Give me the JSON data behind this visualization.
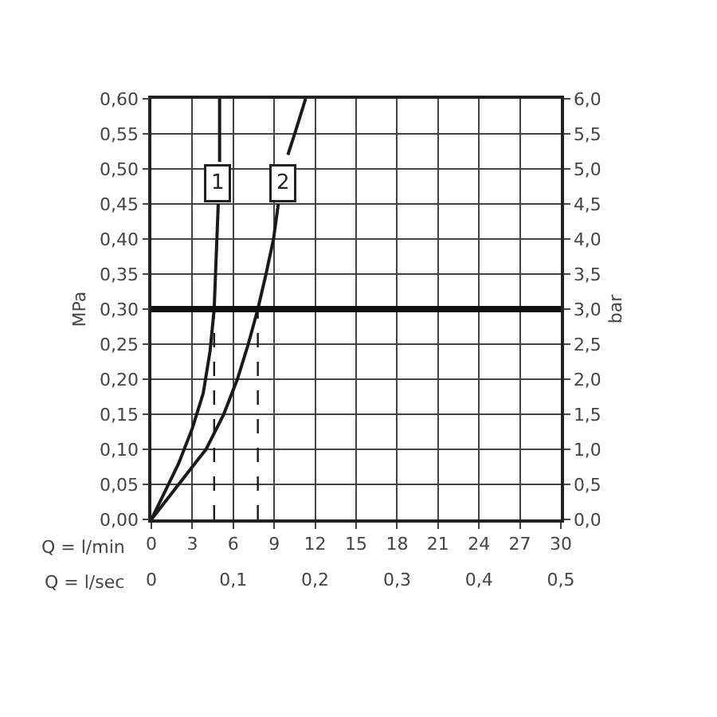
{
  "chart_data": {
    "type": "line",
    "xlabel": "Q = l/min",
    "x2label": "Q = l/sec",
    "ylabel": "MPa",
    "y2label": "bar",
    "xlim": [
      0,
      30
    ],
    "xticks": [
      0,
      3,
      6,
      9,
      12,
      15,
      18,
      21,
      24,
      27,
      30
    ],
    "x2lim": [
      0,
      0.5
    ],
    "x2ticks": [
      0,
      {
        "value": 0.1,
        "label": "0,1"
      },
      {
        "value": 0.2,
        "label": "0,2"
      },
      {
        "value": 0.3,
        "label": "0,3"
      },
      {
        "value": 0.4,
        "label": "0,4"
      },
      {
        "value": 0.5,
        "label": "0,5"
      }
    ],
    "ylim": [
      0,
      0.6
    ],
    "yticks": [
      {
        "value": 0,
        "label": "0,00"
      },
      {
        "value": 0.05,
        "label": "0,05"
      },
      {
        "value": 0.1,
        "label": "0,10"
      },
      {
        "value": 0.15,
        "label": "0,15"
      },
      {
        "value": 0.2,
        "label": "0,20"
      },
      {
        "value": 0.25,
        "label": "0,25"
      },
      {
        "value": 0.3,
        "label": "0,30"
      },
      {
        "value": 0.35,
        "label": "0,35"
      },
      {
        "value": 0.4,
        "label": "0,40"
      },
      {
        "value": 0.45,
        "label": "0,45"
      },
      {
        "value": 0.5,
        "label": "0,50"
      },
      {
        "value": 0.55,
        "label": "0,55"
      },
      {
        "value": 0.6,
        "label": "0,60"
      }
    ],
    "y2lim": [
      0,
      6
    ],
    "y2ticks": [
      {
        "value": 0,
        "label": "0,0"
      },
      {
        "value": 0.5,
        "label": "0,5"
      },
      {
        "value": 1,
        "label": "1,0"
      },
      {
        "value": 1.5,
        "label": "1,5"
      },
      {
        "value": 2,
        "label": "2,0"
      },
      {
        "value": 2.5,
        "label": "2,5"
      },
      {
        "value": 3,
        "label": "3,0"
      },
      {
        "value": 3.5,
        "label": "3,5"
      },
      {
        "value": 4,
        "label": "4,0"
      },
      {
        "value": 4.5,
        "label": "4,5"
      },
      {
        "value": 5,
        "label": "5,0"
      },
      {
        "value": 5.5,
        "label": "5,5"
      },
      {
        "value": 6,
        "label": "6,0"
      }
    ],
    "grid": true,
    "marker": "none",
    "series": [
      {
        "color": "#1a1a1a",
        "line_style": "solid",
        "x": [
          0,
          2,
          3,
          3.8,
          4.3,
          4.6,
          4.8,
          4.9,
          4.95,
          5.0,
          5.0
        ],
        "values": [
          0,
          0.08,
          0.13,
          0.18,
          0.24,
          0.3,
          0.4,
          0.45,
          null,
          0.51,
          0.6
        ]
      },
      {
        "color": "#1a1a1a",
        "line_style": "solid",
        "x": [
          0,
          2,
          4,
          5.3,
          6.3,
          7.1,
          7.8,
          8.4,
          8.95,
          9.3,
          9.6,
          10.0,
          10.5,
          11.3
        ],
        "values": [
          0,
          0.05,
          0.1,
          0.15,
          0.2,
          0.25,
          0.3,
          0.35,
          0.4,
          0.45,
          null,
          0.52,
          0.55,
          0.6
        ]
      },
      {
        "color": "#1a1a1a",
        "line_style": "dashed",
        "x": [
          4.6,
          4.6
        ],
        "values": [
          0,
          0.3
        ]
      },
      {
        "color": "#1a1a1a",
        "line_style": "dashed",
        "x": [
          7.8,
          7.8
        ],
        "values": [
          0,
          0.3
        ]
      }
    ],
    "ref_lines": [
      {
        "axis": "y",
        "value": 0.3,
        "color": "#111111"
      }
    ],
    "annotations": [
      {
        "text": "1",
        "x": 4.9,
        "y": 0.48
      },
      {
        "text": "2",
        "x": 9.6,
        "y": 0.48
      }
    ]
  }
}
